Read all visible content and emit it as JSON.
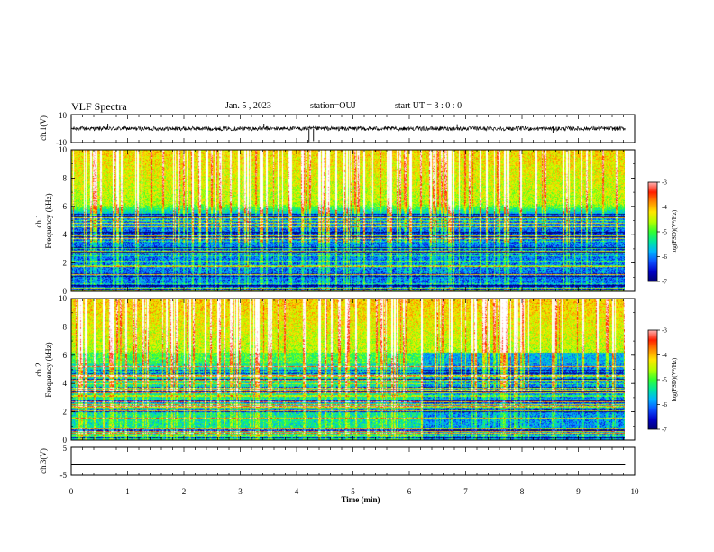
{
  "header": {
    "title": "VLF Spectra",
    "date": "Jan. 5 , 2023",
    "station": "station=OUJ",
    "start": "start UT = 3 : 0 : 0"
  },
  "chart_data": [
    {
      "type": "line",
      "panel": "ch1-waveform",
      "ylabel": "ch.1(V)",
      "ylim": [
        -10,
        10
      ],
      "ytick_labels": [
        "10",
        "-10"
      ],
      "baseline": 0,
      "noise_amplitude": 1.5,
      "spikes": [
        {
          "x": 0.65,
          "y": 3.5
        },
        {
          "x": 3.42,
          "y": 3.0
        },
        {
          "x": 4.22,
          "y": -9.5
        },
        {
          "x": 4.3,
          "y": -9.0
        },
        {
          "x": 6.85,
          "y": 2.5
        },
        {
          "x": 8.55,
          "y": -3.0
        }
      ]
    },
    {
      "type": "heatmap",
      "panel": "ch1-spectrogram",
      "ylabel": "ch.1 Frequency (kHz)",
      "ylabel_line1": "ch.1",
      "ylabel_line2": "Frequency (kHz)",
      "xlim": [
        0,
        10
      ],
      "ylim": [
        0,
        10
      ],
      "yticks": [
        0,
        2,
        4,
        6,
        8,
        10
      ],
      "data_extent_min": 9.83,
      "colorbar": {
        "label": "log(PSD)(V²/Hz)",
        "range": [
          -7,
          -3
        ],
        "tick_labels": [
          "-3",
          "-4",
          "-5",
          "-6",
          "-7"
        ]
      }
    },
    {
      "type": "heatmap",
      "panel": "ch2-spectrogram",
      "ylabel": "ch.2 Frequency (kHz)",
      "ylabel_line1": "ch.2",
      "ylabel_line2": "Frequency (kHz)",
      "xlim": [
        0,
        10
      ],
      "ylim": [
        0,
        10
      ],
      "yticks": [
        0,
        2,
        4,
        6,
        8,
        10
      ],
      "data_extent_min": 9.83,
      "colorbar": {
        "label": "log(PSD)(V²/Hz)",
        "range": [
          -7,
          -3
        ],
        "tick_labels": [
          "-3",
          "-4",
          "-5",
          "-6",
          "-7"
        ]
      }
    },
    {
      "type": "line",
      "panel": "ch3-waveform",
      "ylabel": "ch.3(V)",
      "ylim": [
        -5,
        5
      ],
      "ytick_labels": [
        "5",
        "-5"
      ],
      "baseline": -1,
      "xlabel": "Time (min)",
      "xlim": [
        0,
        10
      ],
      "xtick_labels": [
        "0",
        "1",
        "2",
        "3",
        "4",
        "5",
        "6",
        "7",
        "8",
        "9",
        "10"
      ]
    }
  ],
  "colors": {
    "colormap": [
      "#00006e",
      "#0000c8",
      "#0a50ff",
      "#00b4ff",
      "#00e6a0",
      "#32ff32",
      "#b4ff00",
      "#ffe600",
      "#ff8c00",
      "#ff1e00",
      "#ffb4b4",
      "#ffffff"
    ]
  }
}
